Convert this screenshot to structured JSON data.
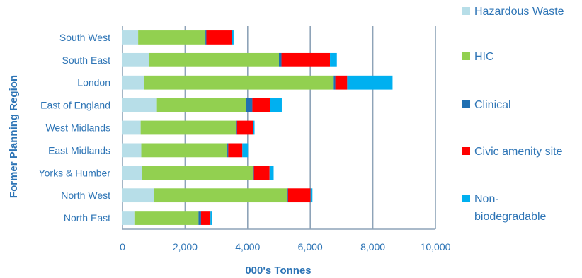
{
  "chart_data": {
    "type": "bar",
    "orientation": "horizontal",
    "stacked": true,
    "title": "",
    "xlabel": "000's Tonnes",
    "ylabel": "Former Planning Region",
    "xlim": [
      0,
      10000
    ],
    "xticks": [
      0,
      2000,
      4000,
      6000,
      8000,
      10000
    ],
    "xtick_labels": [
      "0",
      "2,000",
      "4,000",
      "6,000",
      "8,000",
      "10,000"
    ],
    "grid": "vertical",
    "legend_position": "right",
    "categories": [
      "South West",
      "South East",
      "London",
      "East of England",
      "West Midlands",
      "East Midlands",
      "Yorks & Humber",
      "North West",
      "North East"
    ],
    "series": [
      {
        "name": "Hazardous Waste",
        "color": "#B7DEE8",
        "values": [
          500,
          850,
          700,
          1100,
          580,
          600,
          620,
          1000,
          380
        ]
      },
      {
        "name": "HIC",
        "color": "#92D050",
        "values": [
          2150,
          4150,
          6050,
          2850,
          3050,
          2750,
          3550,
          4250,
          2050
        ]
      },
      {
        "name": "Clinical",
        "color": "#1F6FB2",
        "values": [
          30,
          80,
          50,
          200,
          30,
          30,
          30,
          40,
          80
        ]
      },
      {
        "name": "Civic amenity site",
        "color": "#FF0000",
        "values": [
          820,
          1550,
          380,
          560,
          510,
          450,
          500,
          720,
          300
        ]
      },
      {
        "name": "Non-biodegradable",
        "color": "#00B0F0",
        "values": [
          50,
          220,
          1450,
          380,
          50,
          180,
          130,
          60,
          50
        ]
      }
    ]
  }
}
